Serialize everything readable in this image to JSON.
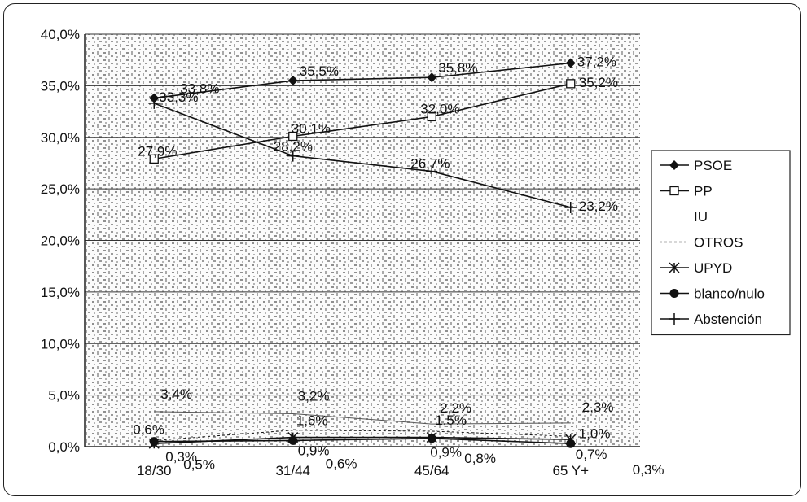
{
  "chart_data": {
    "type": "line",
    "categories": [
      "18/30",
      "31/44",
      "45/64",
      "65 Y+"
    ],
    "ylim": [
      0,
      40
    ],
    "yticks": [
      "0,0%",
      "5,0%",
      "10,0%",
      "15,0%",
      "20,0%",
      "25,0%",
      "30,0%",
      "35,0%",
      "40,0%"
    ],
    "grid": "horizontal",
    "legend_position": "right",
    "series": [
      {
        "name": "PSOE",
        "marker": "diamond",
        "values": [
          33.8,
          35.5,
          35.8,
          37.2
        ],
        "labels": [
          "33,8%",
          "35,5%",
          "35,8%",
          "37,2%"
        ]
      },
      {
        "name": "PP",
        "marker": "square-open",
        "values": [
          27.9,
          30.1,
          32.0,
          35.2
        ],
        "labels": [
          "27,9%",
          "30,1%",
          "32,0%",
          "35,2%"
        ]
      },
      {
        "name": "IU",
        "marker": "none",
        "values": [
          3.4,
          3.2,
          2.2,
          2.3
        ],
        "labels": [
          "3,4%",
          "3,2%",
          "2,2%",
          "2,3%"
        ]
      },
      {
        "name": "OTROS",
        "marker": "none",
        "values": [
          0.6,
          1.6,
          1.5,
          1.0
        ],
        "labels": [
          "0,6%",
          "1,6%",
          "1,5%",
          "1,0%"
        ]
      },
      {
        "name": "UPYD",
        "marker": "asterisk",
        "values": [
          0.3,
          0.9,
          0.9,
          0.7
        ],
        "labels": [
          "0,3%",
          "0,9%",
          "0,9%",
          "0,7%"
        ]
      },
      {
        "name": "blanco/nulo",
        "marker": "circle",
        "values": [
          0.5,
          0.6,
          0.8,
          0.3
        ],
        "labels": [
          "0,5%",
          "0,6%",
          "0,8%",
          "0,3%"
        ]
      },
      {
        "name": "Abstención",
        "marker": "plus",
        "values": [
          33.3,
          28.2,
          26.7,
          23.2
        ],
        "labels": [
          "33,3%",
          "28,2%",
          "26,7%",
          "23,2%"
        ]
      }
    ]
  }
}
